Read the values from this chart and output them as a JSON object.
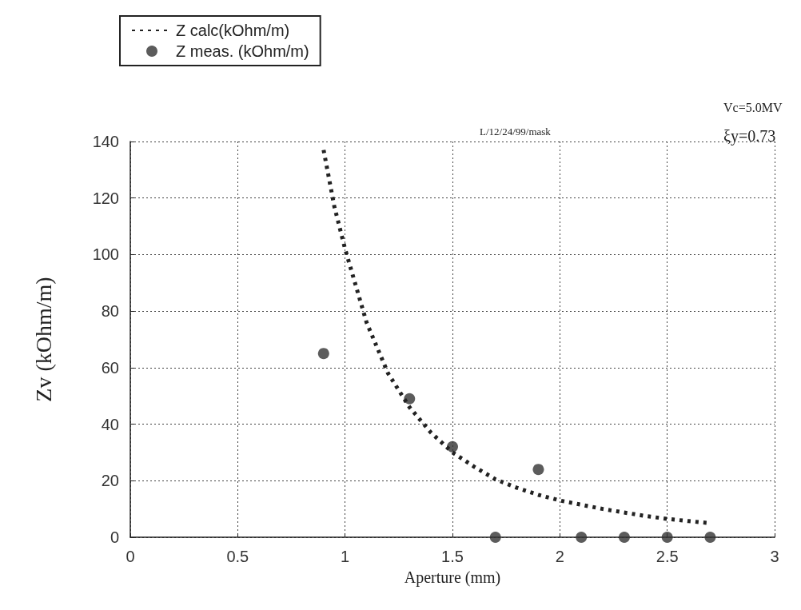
{
  "chart_data": {
    "type": "line",
    "xlabel": "Aperture (mm)",
    "ylabel": "Zv (kOhm/m)",
    "annotations": [
      "L/12/24/99/mask",
      "Vc=5.0MV",
      "ξy=0.73"
    ],
    "series": [
      {
        "name": "Z calc(kOhm/m)",
        "color": "#222222",
        "line_style": "dotted",
        "marker": "none",
        "x": [
          0.9,
          0.95,
          1.0,
          1.1,
          1.2,
          1.3,
          1.4,
          1.5,
          1.6,
          1.7,
          1.8,
          1.9,
          2.0,
          2.2,
          2.4,
          2.5,
          2.6,
          2.7
        ],
        "values": [
          137,
          117,
          102,
          76,
          58,
          46,
          37,
          30,
          25,
          20.5,
          17.5,
          15,
          13,
          10,
          7.5,
          6.5,
          5.7,
          5
        ]
      },
      {
        "name": "Z meas. (kOhm/m)",
        "type": "scatter",
        "color": "#333333",
        "marker": "circle",
        "x": [
          0.9,
          1.3,
          1.5,
          1.9,
          1.7,
          2.1,
          2.3,
          2.5,
          2.7
        ],
        "values": [
          65,
          49,
          32,
          24,
          0,
          0,
          0,
          0,
          0
        ]
      }
    ],
    "xlim": [
      0,
      3
    ],
    "xticks": [
      0,
      0.5,
      1,
      1.5,
      2,
      2.5,
      3
    ],
    "ylim": [
      0,
      140
    ],
    "yticks": [
      0,
      20,
      40,
      60,
      80,
      100,
      120,
      140
    ],
    "grid": true,
    "legend": "top left"
  }
}
